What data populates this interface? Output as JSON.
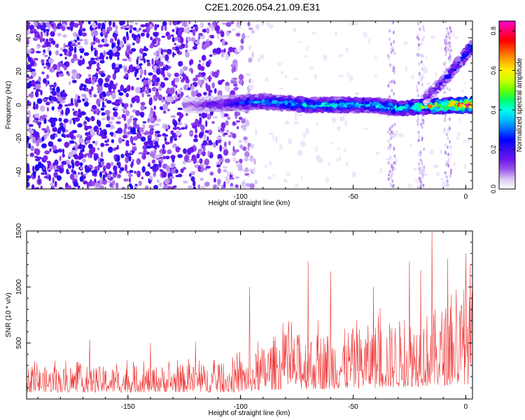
{
  "figure": {
    "title": "C2E1.2026.054.21.09.E31"
  },
  "colors": {
    "background": "#ffffff",
    "snr_line": "#ee3333",
    "axis": "#000000"
  },
  "chart_data": [
    {
      "type": "heatmap",
      "panel": "top",
      "xlabel": "Height of straight line (km)",
      "ylabel": "Frequency (Hz)",
      "xlim": [
        -195,
        3
      ],
      "ylim": [
        -50,
        50
      ],
      "x_ticks": [
        -150,
        -100,
        -50,
        0
      ],
      "y_ticks": [
        -40,
        -20,
        0,
        20,
        40
      ],
      "grid": false,
      "colorbar": {
        "label": "Normalized spectral amplitude",
        "range": [
          0,
          0.85
        ],
        "ticks": [
          0.0,
          0.2,
          0.4,
          0.6,
          0.8
        ],
        "colormap": [
          "#ffffff",
          "#d9c8f4",
          "#9955e8",
          "#6f14ee",
          "#3a10f0",
          "#0000ff",
          "#0066ff",
          "#00bfff",
          "#00ffe6",
          "#00ff66",
          "#66ff00",
          "#ccff00",
          "#ffee00",
          "#ffaa00",
          "#ff5500",
          "#ff0000",
          "#ff0066",
          "#ff00cc"
        ]
      },
      "features": [
        {
          "name": "background noise",
          "noise_strength_by_x": [
            [
              -195,
              0.18
            ],
            [
              -150,
              0.18
            ],
            [
              -110,
              0.14
            ],
            [
              -95,
              0.07
            ],
            [
              -92,
              0.02
            ],
            [
              3,
              0.02
            ]
          ]
        },
        {
          "name": "main ridge",
          "center_hz": [
            [
              -120,
              0
            ],
            [
              -90,
              2
            ],
            [
              -80,
              1
            ],
            [
              -70,
              0
            ],
            [
              -60,
              0
            ],
            [
              -50,
              0
            ],
            [
              -40,
              0
            ],
            [
              -30,
              -2
            ],
            [
              -20,
              -1
            ],
            [
              0,
              0
            ]
          ],
          "peak_amplitude": [
            [
              -125,
              0.1
            ],
            [
              -110,
              0.2
            ],
            [
              -95,
              0.3
            ],
            [
              -80,
              0.38
            ],
            [
              -60,
              0.4
            ],
            [
              -40,
              0.4
            ],
            [
              -25,
              0.42
            ],
            [
              -10,
              0.7
            ],
            [
              0,
              0.78
            ]
          ],
          "halfwidth_hz": 2.5
        },
        {
          "name": "upper branch",
          "center_hz": [
            [
              -18,
              4
            ],
            [
              -10,
              14
            ],
            [
              -5,
              22
            ],
            [
              0,
              30
            ],
            [
              2,
              34
            ]
          ],
          "peak_amplitude": [
            [
              -18,
              0.15
            ],
            [
              -5,
              0.25
            ],
            [
              0,
              0.32
            ],
            [
              2,
              0.35
            ]
          ],
          "halfwidth_hz": 2
        },
        {
          "name": "vertical streaks",
          "x_km": [
            -33,
            -20,
            -8
          ],
          "amplitude": 0.05
        }
      ]
    },
    {
      "type": "line",
      "panel": "bottom",
      "xlabel": "Height of straight line (km)",
      "ylabel": "SNR (10 * v/v)",
      "xlim": [
        -195,
        3
      ],
      "ylim": [
        0,
        1500
      ],
      "x_ticks": [
        -150,
        -100,
        -50,
        0
      ],
      "y_ticks": [
        500,
        1000,
        1500
      ],
      "grid": false,
      "series": [
        {
          "color": "#ee3333",
          "sample_step_km": 0.2,
          "envelope_base": [
            [
              -195,
              60
            ],
            [
              -100,
              60
            ],
            [
              -90,
              80
            ],
            [
              -50,
              90
            ],
            [
              -20,
              110
            ],
            [
              0,
              130
            ],
            [
              3,
              130
            ]
          ],
          "envelope_peak": [
            [
              -195,
              310
            ],
            [
              -150,
              320
            ],
            [
              -110,
              340
            ],
            [
              -95,
              420
            ],
            [
              -85,
              630
            ],
            [
              -70,
              650
            ],
            [
              -50,
              700
            ],
            [
              -30,
              780
            ],
            [
              -15,
              870
            ],
            [
              -5,
              980
            ],
            [
              0,
              1050
            ],
            [
              3,
              1100
            ]
          ],
          "spikes": [
            [
              -167,
              530
            ],
            [
              -140,
              500
            ],
            [
              -120,
              510
            ],
            [
              -96,
              1000
            ],
            [
              -70,
              1230
            ],
            [
              -60,
              1140
            ],
            [
              -41,
              1000
            ],
            [
              -25,
              1230
            ],
            [
              -20,
              1150
            ],
            [
              -15,
              1500
            ],
            [
              -8,
              1250
            ],
            [
              0,
              1300
            ],
            [
              2,
              1200
            ]
          ]
        }
      ]
    }
  ]
}
